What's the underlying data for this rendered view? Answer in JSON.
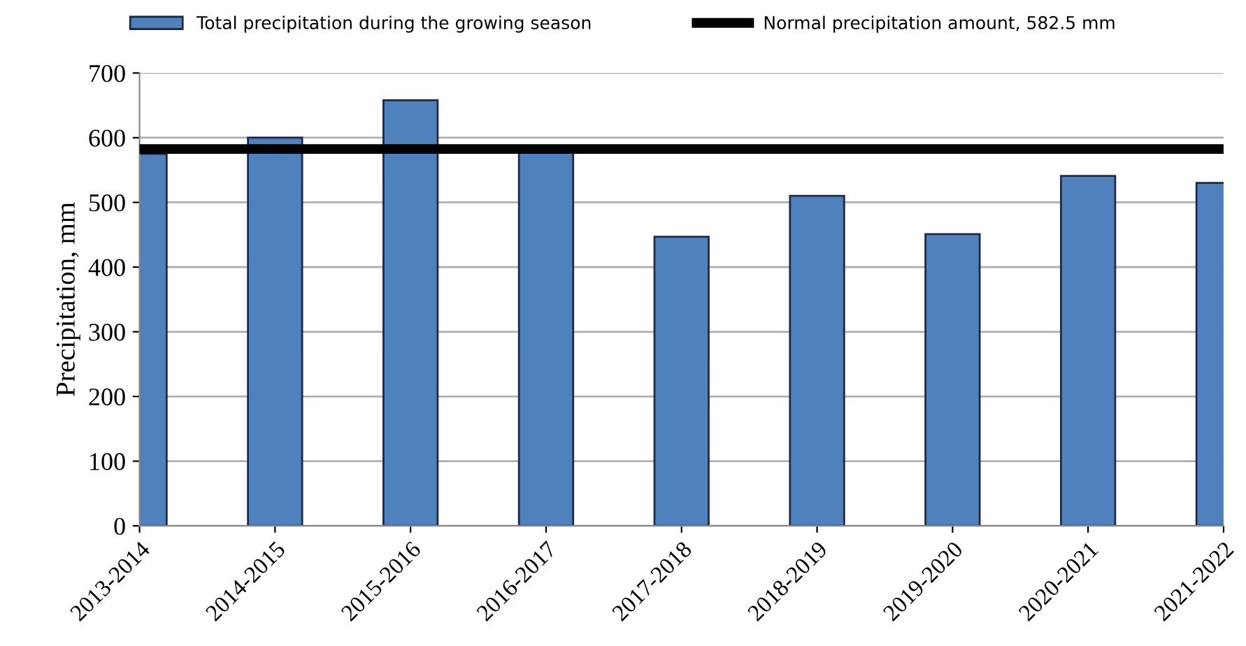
{
  "chart_data": {
    "type": "bar",
    "ylabel": "Precipitation, mm",
    "categories": [
      "2013-2014",
      "2014-2015",
      "2015-2016",
      "2016-2017",
      "2017-2018",
      "2018-2019",
      "2019-2020",
      "2020-2021",
      "2021-2022"
    ],
    "series": [
      {
        "name": "Total precipitation during the growing season",
        "color": "#4f81bd",
        "values": [
          575,
          600,
          658,
          578,
          447,
          510,
          451,
          541,
          530
        ]
      }
    ],
    "ref_lines": [
      {
        "axis": "y",
        "value": 582.5,
        "label": "Normal precipitation amount, 582.5 mm",
        "color": "#000000",
        "line_style": "solid"
      }
    ],
    "ylim": [
      0,
      700
    ],
    "yticks": [
      0,
      100,
      200,
      300,
      400,
      500,
      600,
      700
    ],
    "grid": "y",
    "legend": "top"
  }
}
